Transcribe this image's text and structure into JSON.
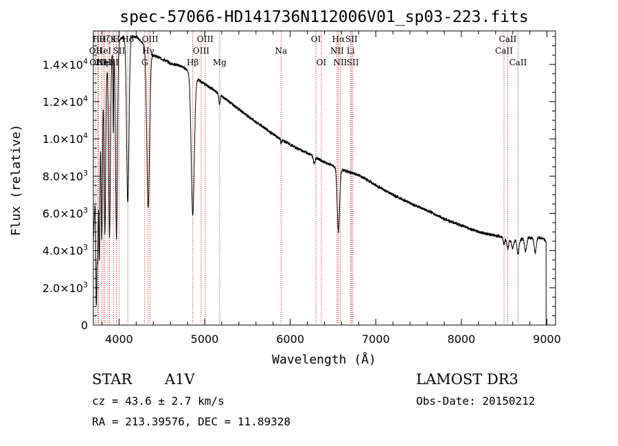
{
  "chart_data": {
    "type": "line",
    "title": "spec-57066-HD141736N112006V01_sp03-223.fits",
    "xlabel": "Wavelength (Å)",
    "ylabel": "Flux (relative)",
    "xlim": [
      3700,
      9100
    ],
    "ylim": [
      0,
      15800
    ],
    "grid": false,
    "x_ticks": [
      4000,
      5000,
      6000,
      7000,
      8000,
      9000
    ],
    "x_tick_labels": [
      "4000",
      "5000",
      "6000",
      "7000",
      "8000",
      "9000"
    ],
    "y_ticks": [
      0,
      2000,
      4000,
      6000,
      8000,
      10000,
      12000,
      14000
    ],
    "y_tick_labels": [
      {
        "mant": "0",
        "exp": ""
      },
      {
        "mant": "2.0×10",
        "exp": "3"
      },
      {
        "mant": "4.0×10",
        "exp": "3"
      },
      {
        "mant": "6.0×10",
        "exp": "3"
      },
      {
        "mant": "8.0×10",
        "exp": "3"
      },
      {
        "mant": "1.0×10",
        "exp": "4"
      },
      {
        "mant": "1.2×10",
        "exp": "4"
      },
      {
        "mant": "1.4×10",
        "exp": "4"
      }
    ],
    "continuum": {
      "x": [
        3700,
        3730,
        3760,
        3800,
        3850,
        3900,
        3950,
        4000,
        4050,
        4100,
        4150,
        4200,
        4250,
        4300,
        4350,
        4400,
        4450,
        4500,
        4550,
        4600,
        4650,
        4700,
        4750,
        4800,
        4850,
        4900,
        4950,
        5000,
        5100,
        5200,
        5300,
        5400,
        5500,
        5600,
        5700,
        5800,
        5900,
        6000,
        6100,
        6200,
        6300,
        6400,
        6500,
        6600,
        6700,
        6800,
        6900,
        7000,
        7200,
        7400,
        7600,
        7800,
        8000,
        8200,
        8400,
        8500,
        8600,
        8700,
        8800,
        8900,
        8950,
        8990
      ],
      "y": [
        4500,
        8000,
        11500,
        12800,
        13700,
        14400,
        15000,
        15300,
        15500,
        15600,
        15500,
        15500,
        15300,
        15000,
        14700,
        14500,
        14400,
        14300,
        14200,
        14050,
        14000,
        13950,
        13850,
        13700,
        13500,
        13250,
        13100,
        12950,
        12650,
        12300,
        11950,
        11600,
        11250,
        10900,
        10600,
        10250,
        9950,
        9700,
        9450,
        9250,
        9000,
        8750,
        8550,
        8350,
        8200,
        8050,
        7800,
        7500,
        7000,
        6550,
        6150,
        5700,
        5350,
        5000,
        4800,
        4700,
        4600,
        4620,
        4680,
        4700,
        4650,
        4500
      ]
    },
    "absorption_features": [
      {
        "center": 3734,
        "depth": 7000,
        "width": 6
      },
      {
        "center": 3750,
        "depth": 6500,
        "width": 7
      },
      {
        "center": 3770,
        "depth": 8200,
        "width": 7
      },
      {
        "center": 3798,
        "depth": 8200,
        "width": 8
      },
      {
        "center": 3835,
        "depth": 8500,
        "width": 9
      },
      {
        "center": 3889,
        "depth": 9500,
        "width": 10
      },
      {
        "center": 3933,
        "depth": 4500,
        "width": 4
      },
      {
        "center": 3970,
        "depth": 10500,
        "width": 11
      },
      {
        "center": 4102,
        "depth": 9000,
        "width": 14
      },
      {
        "center": 4340,
        "depth": 8500,
        "width": 16
      },
      {
        "center": 4861,
        "depth": 7500,
        "width": 18
      },
      {
        "center": 5175,
        "depth": 500,
        "width": 8
      },
      {
        "center": 5893,
        "depth": 200,
        "width": 6
      },
      {
        "center": 6280,
        "depth": 350,
        "width": 10
      },
      {
        "center": 6563,
        "depth": 3400,
        "width": 14
      },
      {
        "center": 8498,
        "depth": 350,
        "width": 10
      },
      {
        "center": 8542,
        "depth": 550,
        "width": 12
      },
      {
        "center": 8598,
        "depth": 500,
        "width": 12
      },
      {
        "center": 8662,
        "depth": 800,
        "width": 12
      },
      {
        "center": 8750,
        "depth": 700,
        "width": 12
      },
      {
        "center": 8863,
        "depth": 800,
        "width": 12
      }
    ],
    "line_markers": [
      {
        "x": 3727,
        "label": "OII",
        "row": 2
      },
      {
        "x": 3750,
        "label": "OIII",
        "row": 3
      },
      {
        "x": 3760,
        "label": "Hθ",
        "row": 1
      },
      {
        "x": 3798,
        "label": "Hη",
        "row": 3
      },
      {
        "x": 3820,
        "label": "HeI",
        "row": 2
      },
      {
        "x": 3835,
        "label": "Hζ",
        "row": 1
      },
      {
        "x": 3869,
        "label": "NeIII",
        "row": 3
      },
      {
        "x": 3889,
        "label": "Hε",
        "row": 3
      },
      {
        "x": 3934,
        "label": "K",
        "row": 1
      },
      {
        "x": 3969,
        "label": "H",
        "row": 1
      },
      {
        "x": 4000,
        "label": "SII",
        "row": 2
      },
      {
        "x": 4102,
        "label": "Hδ",
        "row": 1
      },
      {
        "x": 4300,
        "label": "G",
        "row": 3
      },
      {
        "x": 4340,
        "label": "Hγ",
        "row": 2
      },
      {
        "x": 4363,
        "label": "OIII",
        "row": 1
      },
      {
        "x": 4861,
        "label": "Hβ",
        "row": 3
      },
      {
        "x": 4959,
        "label": "OIII",
        "row": 2
      },
      {
        "x": 5007,
        "label": "OIII",
        "row": 1
      },
      {
        "x": 5175,
        "label": "Mg",
        "row": 3
      },
      {
        "x": 5893,
        "label": "Na",
        "row": 2
      },
      {
        "x": 6300,
        "label": "OI",
        "row": 1
      },
      {
        "x": 6364,
        "label": "OI",
        "row": 3
      },
      {
        "x": 6548,
        "label": "NII",
        "row": 2
      },
      {
        "x": 6563,
        "label": "Hα",
        "row": 1
      },
      {
        "x": 6584,
        "label": "NII",
        "row": 3
      },
      {
        "x": 6707,
        "label": "Li",
        "row": 2
      },
      {
        "x": 6716,
        "label": "SII",
        "row": 1
      },
      {
        "x": 6731,
        "label": "SII",
        "row": 3
      },
      {
        "x": 8498,
        "label": "CaII",
        "row": 2
      },
      {
        "x": 8542,
        "label": "CaII",
        "row": 1
      },
      {
        "x": 8662,
        "label": "CaII",
        "row": 3
      }
    ]
  },
  "info": {
    "object_class": "STAR",
    "subclass": "A1V",
    "cz": "cz = 43.6 ± 2.7 km/s",
    "radec": "RA = 213.39576, DEC =  11.89328",
    "survey": "LAMOST DR3",
    "obs_date": "Obs-Date: 20150212"
  }
}
